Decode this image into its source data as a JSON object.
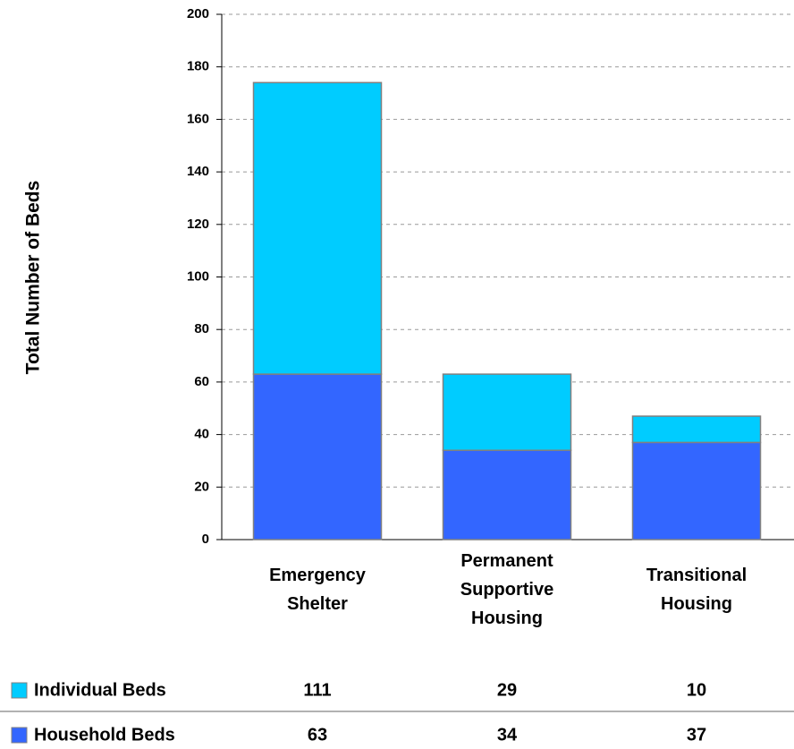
{
  "chart_data": {
    "type": "stacked_bar",
    "y_label": "Total Number of Beds",
    "categories": [
      "Emergency Shelter",
      "Permanent Supportive Housing",
      "Transitional Housing"
    ],
    "series": [
      {
        "name": "Household Beds",
        "color": "#3366ff",
        "values": [
          63,
          34,
          37
        ]
      },
      {
        "name": "Individual Beds",
        "color": "#00ccff",
        "values": [
          111,
          29,
          10
        ]
      }
    ],
    "ylim": [
      0,
      200
    ],
    "yticks": [
      0,
      20,
      40,
      60,
      80,
      100,
      120,
      140,
      160,
      180,
      200
    ],
    "grid": true
  }
}
